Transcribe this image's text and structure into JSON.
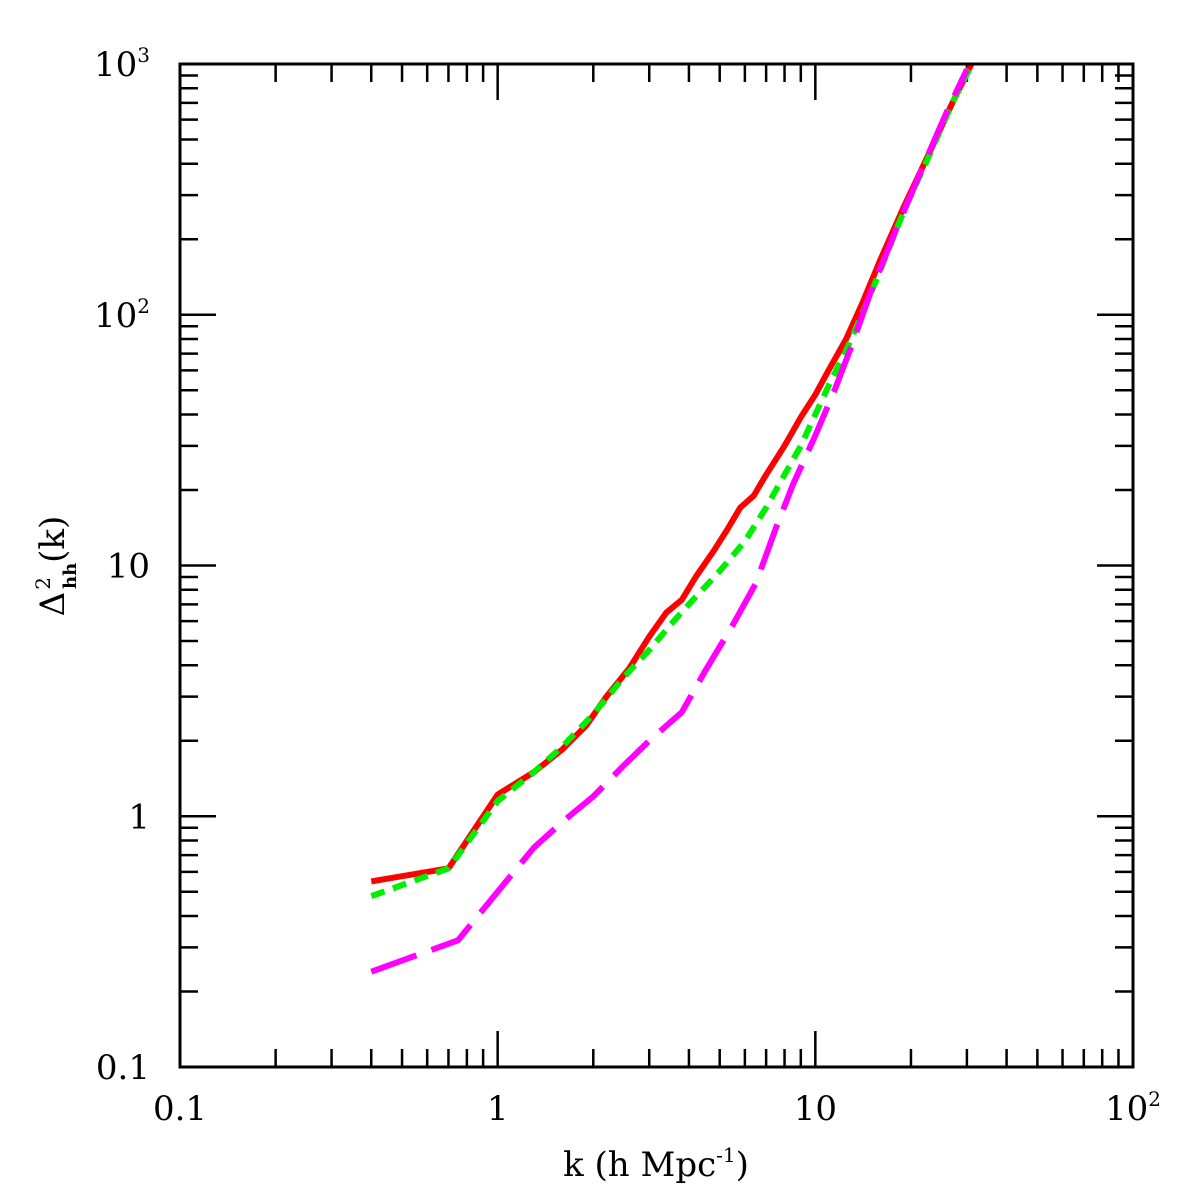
{
  "chart_data": {
    "type": "line",
    "xscale": "log",
    "yscale": "log",
    "xlim": [
      0.1,
      100
    ],
    "ylim": [
      0.1,
      1000
    ],
    "xlabel": {
      "main": "k (h Mpc",
      "sup": "-1",
      "tail": ")"
    },
    "ylabel": {
      "main": "Δ",
      "sup": "2",
      "sub": "hh",
      "tail": "(k)"
    },
    "xticks": [
      {
        "base": "0.1",
        "sup": ""
      },
      {
        "base": "1",
        "sup": ""
      },
      {
        "base": "10",
        "sup": ""
      },
      {
        "base": "10",
        "sup": "2"
      }
    ],
    "yticks": [
      {
        "base": "0.1",
        "sup": ""
      },
      {
        "base": "1",
        "sup": ""
      },
      {
        "base": "10",
        "sup": ""
      },
      {
        "base": "10",
        "sup": "2"
      },
      {
        "base": "10",
        "sup": "3"
      }
    ],
    "grid": false,
    "series": [
      {
        "color": "#ff0000",
        "dash": "solid",
        "x": [
          0.4,
          0.7,
          1.0,
          1.3,
          1.6,
          1.9,
          2.2,
          2.6,
          3.0,
          3.4,
          3.8,
          4.2,
          4.8,
          5.3,
          5.8,
          6.4,
          7.0,
          8.0,
          9.0,
          10.0,
          11.0,
          12.5,
          14.0,
          16.0,
          19.0,
          23.0,
          27.0,
          31.0
        ],
        "y": [
          0.55,
          0.62,
          1.22,
          1.5,
          1.85,
          2.3,
          3.0,
          3.9,
          5.2,
          6.5,
          7.3,
          9.0,
          11.5,
          14.0,
          17.0,
          19.0,
          23.0,
          30.0,
          39.0,
          48.0,
          60.0,
          80.0,
          110.0,
          165.0,
          270.0,
          450.0,
          700.0,
          1000.0
        ]
      },
      {
        "color": "#00ee00",
        "dash": "short",
        "x": [
          0.4,
          0.7,
          1.0,
          1.3,
          1.6,
          2.0,
          2.5,
          3.0,
          3.5,
          4.0,
          5.0,
          6.0,
          7.0,
          8.0,
          9.0,
          10.0,
          11.0,
          12.5,
          14.0,
          16.0,
          19.0,
          23.0,
          27.0,
          30.5
        ],
        "y": [
          0.48,
          0.62,
          1.15,
          1.5,
          1.9,
          2.55,
          3.6,
          4.6,
          5.8,
          7.0,
          9.5,
          12.5,
          17.0,
          23.0,
          30.0,
          40.0,
          52.0,
          72.0,
          100.0,
          150.0,
          260.0,
          440.0,
          700.0,
          950.0
        ]
      },
      {
        "color": "#ff00ff",
        "dash": "long",
        "x": [
          0.4,
          0.75,
          1.0,
          1.3,
          1.6,
          2.0,
          2.5,
          3.0,
          3.8,
          4.5,
          5.5,
          6.5,
          7.5,
          8.5,
          10.0,
          11.5,
          13.0,
          15.0,
          18.0,
          22.0,
          26.0,
          30.0
        ],
        "y": [
          0.24,
          0.32,
          0.5,
          0.75,
          0.95,
          1.2,
          1.6,
          2.0,
          2.6,
          3.8,
          5.8,
          8.5,
          14.0,
          21.0,
          33.0,
          50.0,
          75.0,
          125.0,
          220.0,
          400.0,
          650.0,
          950.0
        ]
      }
    ]
  }
}
